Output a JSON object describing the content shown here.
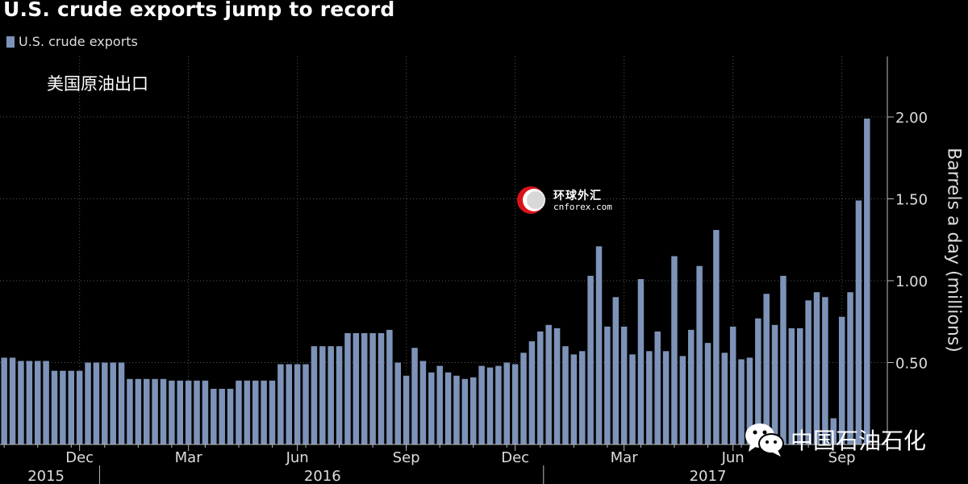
{
  "title": "U.S. crude exports jump to record",
  "annotation": "美国原油出口",
  "watermark": {
    "cn_text": "环球外汇",
    "en_text": "cnforex.com",
    "wechat_text": "中国石油石化"
  },
  "colors": {
    "background": "#000000",
    "bar": "#7d93b8",
    "grid": "#555555",
    "axis": "#bbbbbb",
    "text": "#dddddd"
  },
  "chart_data": {
    "type": "bar",
    "title": "U.S. crude exports jump to record",
    "ylabel": "Barrels a day (millions)",
    "xlabel": "",
    "ylim": [
      0,
      2.35
    ],
    "grid": true,
    "legend_position": "top-left",
    "y_ticks": [
      {
        "value": 0.5,
        "label": "0.50"
      },
      {
        "value": 1.0,
        "label": "1.00"
      },
      {
        "value": 1.5,
        "label": "1.50"
      },
      {
        "value": 2.0,
        "label": "2.00"
      }
    ],
    "month_ticks": [
      {
        "index": 9,
        "label": "Dec"
      },
      {
        "index": 22,
        "label": "Mar"
      },
      {
        "index": 35,
        "label": "Jun"
      },
      {
        "index": 48,
        "label": "Sep"
      },
      {
        "index": 61,
        "label": "Dec"
      },
      {
        "index": 74,
        "label": "Mar"
      },
      {
        "index": 87,
        "label": "Jun"
      },
      {
        "index": 100,
        "label": "Sep"
      }
    ],
    "year_labels": [
      {
        "index": 5,
        "label": "2015"
      },
      {
        "index": 38,
        "label": "2016"
      },
      {
        "index": 84,
        "label": "2017"
      }
    ],
    "year_dividers": [
      11,
      64
    ],
    "series": [
      {
        "name": "U.S. crude exports",
        "values": [
          0.53,
          0.53,
          0.51,
          0.51,
          0.51,
          0.51,
          0.45,
          0.45,
          0.45,
          0.45,
          0.5,
          0.5,
          0.5,
          0.5,
          0.5,
          0.4,
          0.4,
          0.4,
          0.4,
          0.4,
          0.39,
          0.39,
          0.39,
          0.39,
          0.39,
          0.34,
          0.34,
          0.34,
          0.39,
          0.39,
          0.39,
          0.39,
          0.39,
          0.49,
          0.49,
          0.49,
          0.49,
          0.6,
          0.6,
          0.6,
          0.6,
          0.68,
          0.68,
          0.68,
          0.68,
          0.68,
          0.7,
          0.5,
          0.42,
          0.59,
          0.51,
          0.44,
          0.48,
          0.44,
          0.42,
          0.4,
          0.41,
          0.48,
          0.47,
          0.48,
          0.5,
          0.49,
          0.56,
          0.63,
          0.69,
          0.73,
          0.71,
          0.6,
          0.55,
          0.57,
          1.03,
          1.21,
          0.72,
          0.9,
          0.72,
          0.55,
          1.01,
          0.57,
          0.69,
          0.57,
          1.15,
          0.54,
          0.7,
          1.09,
          0.62,
          1.31,
          0.56,
          0.72,
          0.52,
          0.53,
          0.77,
          0.92,
          0.73,
          1.03,
          0.71,
          0.71,
          0.88,
          0.93,
          0.9,
          0.16,
          0.78,
          0.93,
          1.49,
          1.99
        ]
      }
    ]
  }
}
